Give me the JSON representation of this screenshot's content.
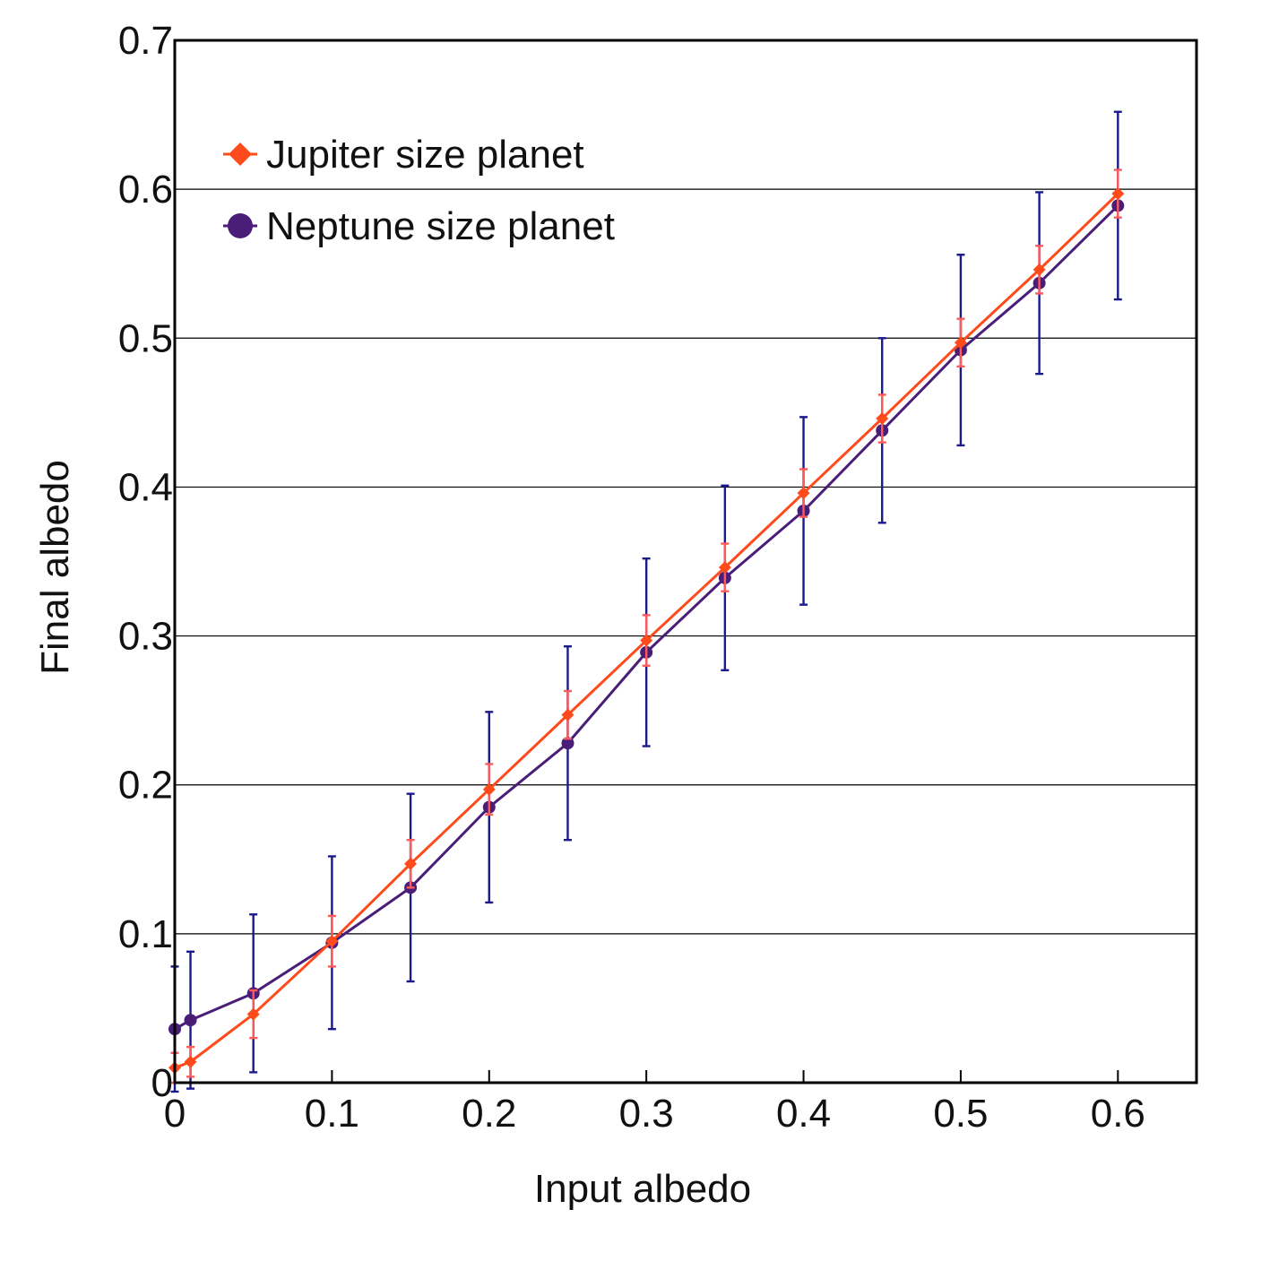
{
  "chart_data": {
    "type": "line",
    "title": "",
    "xlabel": "Input albedo",
    "ylabel": "Final albedo",
    "xlim": [
      0,
      0.65
    ],
    "ylim": [
      0,
      0.7
    ],
    "xticks": [
      "0",
      "0.1",
      "0.2",
      "0.3",
      "0.4",
      "0.5",
      "0.6"
    ],
    "yticks": [
      "0",
      "0.1",
      "0.2",
      "0.3",
      "0.4",
      "0.5",
      "0.6",
      "0.7"
    ],
    "grid": "horizontal",
    "legend_position": "top-left",
    "series": [
      {
        "name": "Jupiter size planet",
        "marker": "diamond",
        "color": "#ff4a1c",
        "error_color": "#ff5a5a",
        "x": [
          0,
          0.01,
          0.05,
          0.1,
          0.15,
          0.2,
          0.25,
          0.3,
          0.35,
          0.4,
          0.45,
          0.5,
          0.55,
          0.6
        ],
        "y": [
          0.01,
          0.014,
          0.046,
          0.095,
          0.147,
          0.197,
          0.247,
          0.297,
          0.346,
          0.396,
          0.446,
          0.497,
          0.546,
          0.597
        ],
        "err": [
          0.01,
          0.01,
          0.016,
          0.017,
          0.016,
          0.017,
          0.016,
          0.017,
          0.016,
          0.016,
          0.016,
          0.016,
          0.016,
          0.016
        ]
      },
      {
        "name": "Neptune size planet",
        "marker": "circle",
        "color": "#4a1e78",
        "error_color": "#1a1a8c",
        "x": [
          0,
          0.01,
          0.05,
          0.1,
          0.15,
          0.2,
          0.25,
          0.3,
          0.35,
          0.4,
          0.45,
          0.5,
          0.55,
          0.6
        ],
        "y": [
          0.036,
          0.042,
          0.06,
          0.094,
          0.131,
          0.185,
          0.228,
          0.289,
          0.339,
          0.384,
          0.438,
          0.492,
          0.537,
          0.589
        ],
        "err": [
          0.042,
          0.046,
          0.053,
          0.058,
          0.063,
          0.064,
          0.065,
          0.063,
          0.062,
          0.063,
          0.062,
          0.064,
          0.061,
          0.063
        ]
      }
    ]
  }
}
